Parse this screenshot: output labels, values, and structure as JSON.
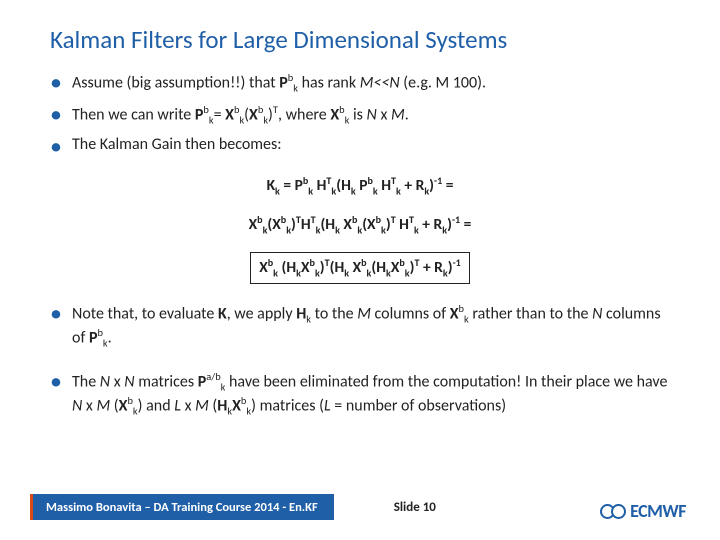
{
  "title": "Kalman Filters for Large Dimensional Systems",
  "bullets": {
    "b1_pre": "Assume (big assumption!!)  that ",
    "b1_p": "P",
    "b1_sup": "b",
    "b1_sub": "k",
    "b1_post": " has rank ",
    "b1_m": "M<<N",
    "b1_end": " (e.g. M 100).",
    "b2": "Then we can write ",
    "b3": "The Kalman Gain then becomes:",
    "b4_pre": "Note that, to evaluate ",
    "b4_k": "K",
    "b4_mid": ", we apply ",
    "b4_h": "H",
    "b4_hsub": "k",
    "b4_mid2": " to the ",
    "b4_m": "M",
    "b4_mid3": " columns of ",
    "b4_x": "X",
    "b4_xsup": "b",
    "b4_xsub": "k",
    "b4_mid4": " rather than to the ",
    "b4_n": "N",
    "b4_mid5": " columns of ",
    "b4_p": "P",
    "b4_psup": "b",
    "b4_psub": "k",
    "b4_end": ".",
    "b5_pre": "The ",
    "b5_n1": "N",
    "b5_x": " x ",
    "b5_n2": "N",
    "b5_mid1": " matrices ",
    "b5_p": "P",
    "b5_psup": "a/b",
    "b5_psub": "k",
    "b5_mid2": " have been eliminated from the computation! In their place we have ",
    "b5_n3": "N",
    "b5_x2": " x ",
    "b5_m1": "M",
    "b5_par1": " (",
    "b5_xb": "X",
    "b5_xbsup": "b",
    "b5_xbsub": "k",
    "b5_par1e": ") and ",
    "b5_l": "L",
    "b5_x3": " x ",
    "b5_m2": "M",
    "b5_par2": " (",
    "b5_h2": "H",
    "b5_h2sub": "k",
    "b5_xb2": "X",
    "b5_xb2sup": "b",
    "b5_xb2sub": "k",
    "b5_par2e": ") matrices (",
    "b5_l2": "L",
    "b5_end": " = number of observations)"
  },
  "footer": {
    "text": "Massimo Bonavita – DA Training Course 2014 - En.KF",
    "slide_label": "Slide ",
    "slide_num": "10",
    "logo": "ECMWF"
  },
  "colors": {
    "accent": "#1f5fa8",
    "orange": "#d94a1a"
  }
}
